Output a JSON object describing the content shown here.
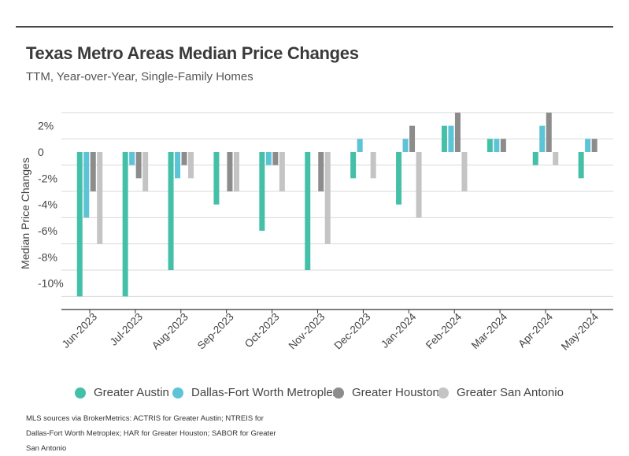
{
  "header": {
    "title": "Texas Metro Areas Median Price Changes",
    "subtitle": "TTM, Year-over-Year, Single-Family Homes"
  },
  "source": "MLS sources via BrokerMetrics: ACTRIS for Greater Austin; NTREIS for Dallas-Fort Worth Metroplex; HAR for Greater Houston; SABOR for Greater San Antonio",
  "chart_data": {
    "type": "bar",
    "ylabel": "Median Price Changes",
    "xlabel": "",
    "ylim": [
      -12,
      3
    ],
    "yticks": [
      2,
      0,
      -2,
      -4,
      -6,
      -8,
      -10
    ],
    "ytick_labels": [
      "2%",
      "0",
      "-2%",
      "-4%",
      "-6%",
      "-8%",
      "-10%"
    ],
    "grid": true,
    "legend_position": "bottom",
    "categories": [
      "Jun-2023",
      "Jul-2023",
      "Aug-2023",
      "Sep-2023",
      "Oct-2023",
      "Nov-2023",
      "Dec-2023",
      "Jan-2024",
      "Feb-2024",
      "Mar-2024",
      "Apr-2024",
      "May-2024"
    ],
    "series": [
      {
        "name": "Greater Austin",
        "color": "#45c0a8",
        "values": [
          -11,
          -11,
          -9,
          -4,
          -6,
          -9,
          -2,
          -4,
          2,
          1,
          -1,
          -2
        ]
      },
      {
        "name": "Dallas-Fort Worth Metroplex",
        "color": "#5cc4d6",
        "values": [
          -5,
          -1,
          -2,
          0,
          -1,
          0,
          1,
          1,
          2,
          1,
          2,
          1
        ]
      },
      {
        "name": "Greater Houston",
        "color": "#8c8c8c",
        "values": [
          -3,
          -2,
          -1,
          -3,
          -1,
          -3,
          0,
          2,
          3,
          1,
          3,
          1
        ]
      },
      {
        "name": "Greater San Antonio",
        "color": "#c4c4c4",
        "values": [
          -7,
          -3,
          -2,
          -3,
          -3,
          -7,
          -2,
          -5,
          -3,
          0,
          -1,
          0
        ]
      }
    ]
  }
}
